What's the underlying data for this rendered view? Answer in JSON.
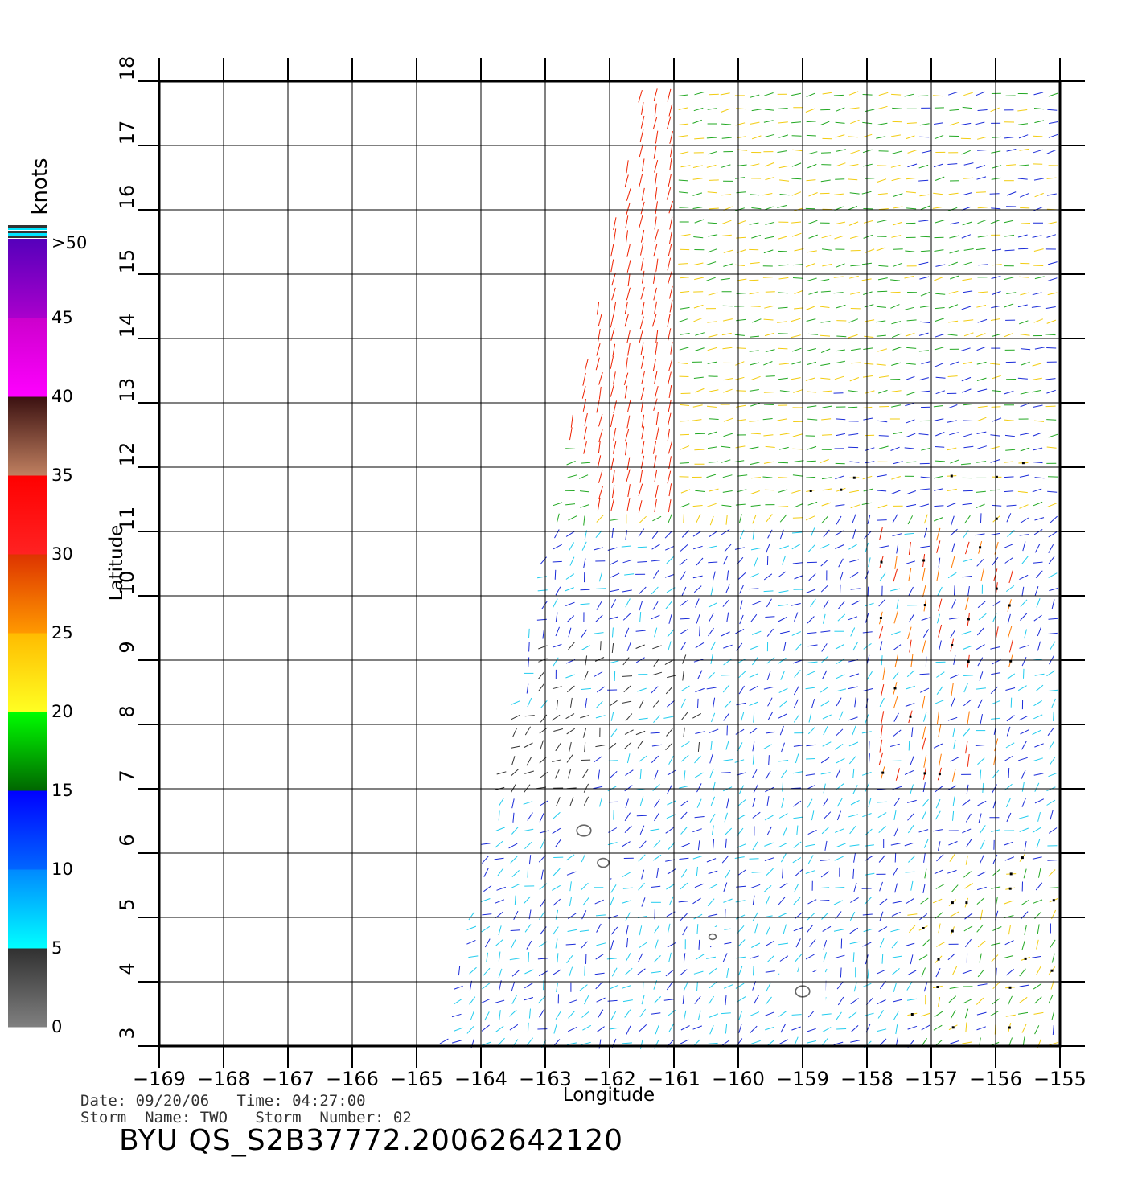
{
  "chart_data": {
    "type": "wind-vector-map",
    "xlabel": "Longitude",
    "ylabel": "Latitude",
    "xlim": [
      -169,
      -155
    ],
    "ylim": [
      3,
      18
    ],
    "x_ticks": [
      -169,
      -168,
      -167,
      -166,
      -165,
      -164,
      -163,
      -162,
      -161,
      -160,
      -159,
      -158,
      -157,
      -156,
      -155
    ],
    "y_ticks": [
      3,
      4,
      5,
      6,
      7,
      8,
      9,
      10,
      11,
      12,
      13,
      14,
      15,
      16,
      17,
      18
    ],
    "grid": true,
    "colorbar": {
      "unit": "knots",
      "labels": [
        "0",
        "5",
        "10",
        "15",
        "20",
        "25",
        "30",
        "35",
        "40",
        "45",
        ">50"
      ],
      "bands": [
        {
          "from": 0,
          "to": 5,
          "colors": [
            "#808080",
            "#303030"
          ]
        },
        {
          "from": 5,
          "to": 10,
          "colors": [
            "#00ffff",
            "#0088ff"
          ]
        },
        {
          "from": 10,
          "to": 15,
          "colors": [
            "#0066ff",
            "#0000ff"
          ]
        },
        {
          "from": 15,
          "to": 20,
          "colors": [
            "#006600",
            "#00ff00"
          ]
        },
        {
          "from": 20,
          "to": 25,
          "colors": [
            "#ffff22",
            "#ffbb00"
          ]
        },
        {
          "from": 25,
          "to": 30,
          "colors": [
            "#ff9900",
            "#dd3300"
          ]
        },
        {
          "from": 30,
          "to": 35,
          "colors": [
            "#ff2222",
            "#ff0000"
          ]
        },
        {
          "from": 35,
          "to": 40,
          "colors": [
            "#c08060",
            "#3a1010"
          ]
        },
        {
          "from": 40,
          "to": 45,
          "colors": [
            "#ff00ff",
            "#cc00cc"
          ]
        },
        {
          "from": 45,
          "to": 50,
          "colors": [
            "#aa00cc",
            "#5500bb"
          ]
        }
      ]
    },
    "swath_corners_lonlat": [
      [
        -161.5,
        18
      ],
      [
        -155,
        18
      ],
      [
        -155,
        3
      ],
      [
        -164.6,
        3
      ]
    ],
    "islands_lonlat": [
      {
        "lon": -162.4,
        "lat": 6.35,
        "r": 0.1
      },
      {
        "lon": -162.1,
        "lat": 5.85,
        "r": 0.08
      },
      {
        "lon": -160.4,
        "lat": 4.7,
        "r": 0.05
      },
      {
        "lon": -159.0,
        "lat": 3.85,
        "r": 0.1
      }
    ],
    "wind_regions": [
      {
        "name": "gray",
        "color": "#333333",
        "speed_knots": 3
      },
      {
        "name": "cyan",
        "color": "#22ccee",
        "speed_knots": 8
      },
      {
        "name": "blue",
        "color": "#1a2bd8",
        "speed_knots": 13
      },
      {
        "name": "green",
        "color": "#22a822",
        "speed_knots": 18
      },
      {
        "name": "yellow",
        "color": "#f2cc11",
        "speed_knots": 22
      },
      {
        "name": "orange",
        "color": "#ff7a00",
        "speed_knots": 27
      },
      {
        "name": "red",
        "color": "#ee2200",
        "speed_knots": 32
      }
    ]
  },
  "footer": {
    "line1": "Date: 09/20/06   Time: 04:27:00",
    "line2": "Storm  Name: TWO   Storm  Number: 02",
    "product": "BYU  QS_S2B37772.20062642120"
  }
}
